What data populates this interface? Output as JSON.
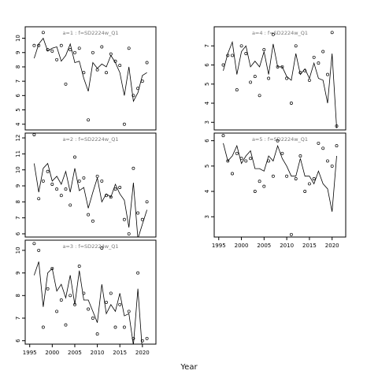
{
  "chart_data": [
    {
      "type": "line",
      "title": "a=1 :  f=SD2224w_Q1",
      "ylim": [
        3.6,
        10.8
      ],
      "xlim": [
        1994,
        2023
      ],
      "yticks": [
        4,
        5,
        6,
        7,
        8,
        9,
        10
      ],
      "xticks": [],
      "grid": false,
      "series": [
        {
          "type": "line",
          "x": [
            1996,
            1997,
            1998,
            1999,
            2000,
            2001,
            2002,
            2003,
            2004,
            2005,
            2006,
            2007,
            2008,
            2009,
            2010,
            2011,
            2012,
            2013,
            2014,
            2015,
            2016,
            2017,
            2018,
            2019,
            2020,
            2021
          ],
          "values": [
            8.6,
            9.6,
            10.0,
            9.1,
            9.3,
            9.4,
            8.4,
            8.8,
            9.6,
            8.3,
            8.4,
            7.2,
            6.3,
            8.3,
            7.9,
            8.2,
            8.0,
            8.8,
            8.3,
            7.6,
            6.0,
            8.0,
            5.6,
            6.2,
            7.4,
            7.6
          ]
        },
        {
          "type": "scatter",
          "x": [
            1996,
            1997,
            1998,
            1999,
            2000,
            2001,
            2002,
            2003,
            2004,
            2005,
            2006,
            2007,
            2008,
            2009,
            2010,
            2011,
            2012,
            2013,
            2014,
            2015,
            2016,
            2017,
            2018,
            2019,
            2020,
            2021
          ],
          "values": [
            9.5,
            9.5,
            10.4,
            9.2,
            9.1,
            8.5,
            9.5,
            6.8,
            9.2,
            9.0,
            9.3,
            7.6,
            4.3,
            9.0,
            7.8,
            9.4,
            7.6,
            8.9,
            8.4,
            8.1,
            4.0,
            9.3,
            6.0,
            6.5,
            7.0,
            8.3
          ]
        }
      ]
    },
    {
      "type": "line",
      "title": "a=2 :  f=SD2224w_Q1",
      "ylim": [
        5.8,
        12.3
      ],
      "xlim": [
        1994,
        2023
      ],
      "yticks": [
        6,
        7,
        8,
        9,
        10,
        11,
        12
      ],
      "xticks": [],
      "grid": false,
      "series": [
        {
          "type": "line",
          "x": [
            1996,
            1997,
            1998,
            1999,
            2000,
            2001,
            2002,
            2003,
            2004,
            2005,
            2006,
            2007,
            2008,
            2009,
            2010,
            2011,
            2012,
            2013,
            2014,
            2015,
            2016,
            2017,
            2018,
            2019,
            2020,
            2021
          ],
          "values": [
            10.4,
            8.6,
            10.1,
            10.4,
            9.3,
            9.6,
            9.1,
            9.9,
            8.6,
            10.1,
            8.7,
            8.9,
            7.6,
            8.6,
            9.5,
            8.0,
            8.5,
            8.3,
            9.1,
            8.5,
            8.1,
            6.4,
            9.2,
            5.7,
            6.6,
            7.5
          ]
        },
        {
          "type": "scatter",
          "x": [
            1996,
            1997,
            1998,
            1999,
            2000,
            2001,
            2002,
            2003,
            2004,
            2005,
            2006,
            2007,
            2008,
            2009,
            2010,
            2011,
            2012,
            2013,
            2014,
            2015,
            2016,
            2017,
            2018,
            2019,
            2020,
            2021
          ],
          "values": [
            12.2,
            8.2,
            9.3,
            9.9,
            9.1,
            8.8,
            8.4,
            8.8,
            7.8,
            10.8,
            9.3,
            9.5,
            7.2,
            6.8,
            9.6,
            9.3,
            8.4,
            8.3,
            8.8,
            8.9,
            6.9,
            6.0,
            10.1,
            7.3,
            6.9,
            8.0
          ]
        }
      ]
    },
    {
      "type": "line",
      "title": "a=3 :  f=SD2224w_Q1",
      "ylim": [
        5.85,
        10.45
      ],
      "xlim": [
        1994,
        2023
      ],
      "yticks": [
        6,
        7,
        8,
        9,
        10
      ],
      "xticks": [
        1995,
        2000,
        2005,
        2010,
        2015,
        2020
      ],
      "grid": false,
      "series": [
        {
          "type": "line",
          "x": [
            1996,
            1997,
            1998,
            1999,
            2000,
            2001,
            2002,
            2003,
            2004,
            2005,
            2006,
            2007,
            2008,
            2009,
            2010,
            2011,
            2012,
            2013,
            2014,
            2015,
            2016,
            2017,
            2018,
            2019,
            2020,
            2021
          ],
          "values": [
            8.9,
            9.5,
            7.5,
            9.0,
            9.2,
            8.2,
            8.5,
            7.9,
            8.9,
            7.6,
            9.1,
            7.8,
            7.8,
            7.3,
            6.8,
            8.5,
            7.2,
            7.6,
            7.3,
            8.1,
            7.1,
            7.2,
            5.8,
            8.3,
            5.5,
            5.6
          ]
        },
        {
          "type": "scatter",
          "x": [
            1996,
            1997,
            1998,
            1999,
            2000,
            2001,
            2002,
            2003,
            2004,
            2005,
            2006,
            2007,
            2008,
            2009,
            2010,
            2011,
            2012,
            2013,
            2014,
            2015,
            2016,
            2017,
            2018,
            2019,
            2020,
            2021
          ],
          "values": [
            10.3,
            10.0,
            6.6,
            8.3,
            9.2,
            7.3,
            7.8,
            6.7,
            8.0,
            7.6,
            9.3,
            8.1,
            7.4,
            7.0,
            6.3,
            10.1,
            7.7,
            8.1,
            6.6,
            7.6,
            6.6,
            7.3,
            6.1,
            9.0,
            6.0,
            6.1
          ]
        }
      ]
    },
    {
      "type": "line",
      "title": "a=4 :  f=SD2224w_Q1",
      "ylim": [
        2.6,
        8.0
      ],
      "xlim": [
        1994,
        2023
      ],
      "yticks": [
        3,
        4,
        5,
        6,
        7
      ],
      "xticks": [],
      "grid": false,
      "series": [
        {
          "type": "line",
          "x": [
            1996,
            1997,
            1998,
            1999,
            2000,
            2001,
            2002,
            2003,
            2004,
            2005,
            2006,
            2007,
            2008,
            2009,
            2010,
            2011,
            2012,
            2013,
            2014,
            2015,
            2016,
            2017,
            2018,
            2019,
            2020,
            2021
          ],
          "values": [
            5.7,
            6.6,
            7.2,
            5.5,
            6.7,
            7.0,
            5.9,
            6.2,
            5.9,
            6.7,
            5.5,
            7.1,
            5.9,
            5.9,
            5.4,
            5.2,
            6.6,
            5.5,
            5.8,
            5.3,
            6.1,
            5.3,
            5.2,
            4.0,
            6.6,
            2.7
          ]
        },
        {
          "type": "scatter",
          "x": [
            1996,
            1997,
            1998,
            1999,
            2000,
            2001,
            2002,
            2003,
            2004,
            2005,
            2006,
            2007,
            2008,
            2009,
            2010,
            2011,
            2012,
            2013,
            2014,
            2015,
            2016,
            2017,
            2018,
            2019,
            2020,
            2021
          ],
          "values": [
            6.0,
            6.5,
            6.5,
            4.7,
            7.0,
            6.6,
            5.1,
            5.4,
            4.4,
            6.8,
            5.3,
            7.6,
            5.9,
            5.9,
            5.3,
            4.0,
            7.0,
            5.6,
            5.7,
            5.2,
            6.4,
            6.1,
            6.7,
            5.5,
            7.7,
            2.8
          ]
        }
      ]
    },
    {
      "type": "line",
      "title": "a=5 :  f=SD2224w_Q1",
      "ylim": [
        2.2,
        6.3
      ],
      "xlim": [
        1994,
        2023
      ],
      "yticks": [
        3,
        4,
        5,
        6
      ],
      "xticks": [
        1995,
        2000,
        2005,
        2010,
        2015,
        2020
      ],
      "grid": false,
      "series": [
        {
          "type": "line",
          "x": [
            1996,
            1997,
            1998,
            1999,
            2000,
            2001,
            2002,
            2003,
            2004,
            2005,
            2006,
            2007,
            2008,
            2009,
            2010,
            2011,
            2012,
            2013,
            2014,
            2015,
            2016,
            2017,
            2018,
            2019,
            2020,
            2021
          ],
          "values": [
            5.9,
            5.2,
            5.4,
            5.8,
            5.1,
            5.4,
            5.6,
            4.9,
            4.9,
            4.8,
            5.4,
            5.2,
            5.8,
            5.3,
            5.0,
            4.6,
            4.6,
            5.3,
            4.6,
            4.6,
            4.3,
            4.8,
            4.3,
            4.1,
            3.2,
            5.4
          ]
        },
        {
          "type": "scatter",
          "x": [
            1996,
            1997,
            1998,
            1999,
            2000,
            2001,
            2002,
            2003,
            2004,
            2005,
            2006,
            2007,
            2008,
            2009,
            2010,
            2011,
            2012,
            2013,
            2014,
            2015,
            2016,
            2017,
            2018,
            2019,
            2020,
            2021
          ],
          "values": [
            6.2,
            5.2,
            4.7,
            5.5,
            5.3,
            5.2,
            5.3,
            4.0,
            4.4,
            4.2,
            5.2,
            4.6,
            6.0,
            5.5,
            4.6,
            2.3,
            4.5,
            5.4,
            4.0,
            4.3,
            4.5,
            5.9,
            5.7,
            5.2,
            5.0,
            5.8
          ]
        }
      ]
    }
  ],
  "xlabel": "Year"
}
